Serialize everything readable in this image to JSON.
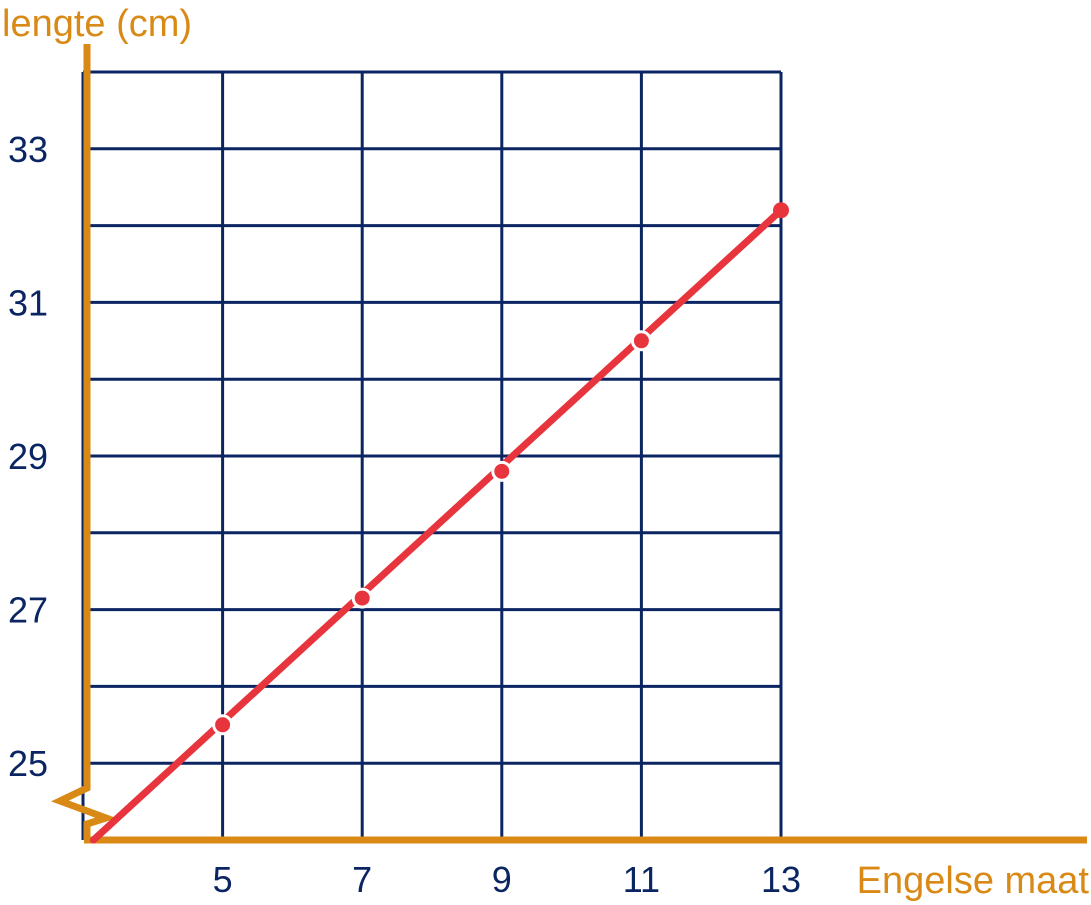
{
  "colors": {
    "grid": "#0b2563",
    "axis": "#d98a16",
    "line": "#e8343d",
    "marker_stroke": "#ffffff",
    "tick_text": "#0b2563",
    "title_text": "#d98a16",
    "background": "#ffffff"
  },
  "chart_data": {
    "type": "line",
    "title": "",
    "xlabel": "Engelse maat",
    "ylabel": "lengte (cm)",
    "xlim": [
      3,
      13
    ],
    "ylim": [
      24,
      34
    ],
    "axis_break_y": true,
    "grid": true,
    "x_gridlines": [
      3,
      5,
      7,
      9,
      11,
      13
    ],
    "y_gridlines": [
      25,
      26,
      27,
      28,
      29,
      30,
      31,
      32,
      33,
      34
    ],
    "x_ticks": [
      5,
      7,
      9,
      11,
      13
    ],
    "x_tick_labels": [
      "5",
      "7",
      "9",
      "11",
      "13"
    ],
    "y_ticks": [
      25,
      27,
      29,
      31,
      33
    ],
    "y_tick_labels": [
      "25",
      "27",
      "29",
      "31",
      "33"
    ],
    "line": {
      "x_start": 3.15,
      "y_start": 24,
      "x_end": 13,
      "y_end": 32.2
    },
    "series": [
      {
        "points": [
          {
            "x": 5,
            "y": 25.5
          },
          {
            "x": 7,
            "y": 27.15
          },
          {
            "x": 9,
            "y": 28.8
          },
          {
            "x": 11,
            "y": 30.5
          },
          {
            "x": 13,
            "y": 32.2
          }
        ]
      }
    ]
  }
}
